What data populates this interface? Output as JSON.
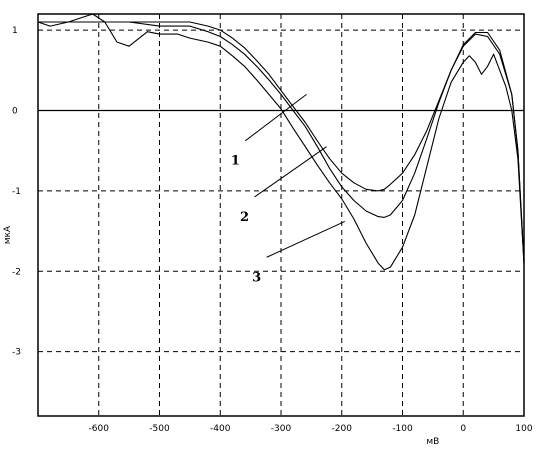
{
  "chart_data": {
    "type": "line",
    "xlabel": "мВ",
    "ylabel": "мкА",
    "xlim": [
      -700,
      100
    ],
    "ylim": [
      -3.8,
      1.2
    ],
    "x_ticks": [
      -600,
      -500,
      -400,
      -300,
      -200,
      -100,
      0,
      100
    ],
    "y_ticks": [
      1,
      0,
      -1,
      -2,
      -3
    ],
    "x_tick_labels": [
      "-600",
      "-500",
      "-400",
      "-300",
      "-200",
      "-100",
      "0",
      "100"
    ],
    "y_tick_labels": [
      "1",
      "0",
      "-1",
      "-2",
      "-3"
    ],
    "grid": true,
    "series": [
      {
        "name": "1",
        "x": [
          -700,
          -650,
          -600,
          -550,
          -500,
          -450,
          -420,
          -400,
          -380,
          -360,
          -340,
          -320,
          -300,
          -280,
          -260,
          -240,
          -220,
          -200,
          -180,
          -160,
          -140,
          -130,
          -120,
          -100,
          -80,
          -60,
          -40,
          -20,
          0,
          20,
          40,
          60,
          80,
          90,
          100
        ],
        "y": [
          1.1,
          1.1,
          1.1,
          1.1,
          1.1,
          1.1,
          1.05,
          1.0,
          0.9,
          0.78,
          0.62,
          0.45,
          0.25,
          0.05,
          -0.15,
          -0.38,
          -0.6,
          -0.78,
          -0.9,
          -0.98,
          -1.0,
          -0.98,
          -0.92,
          -0.78,
          -0.55,
          -0.25,
          0.12,
          0.5,
          0.82,
          0.97,
          0.97,
          0.75,
          0.2,
          -0.5,
          -1.9
        ]
      },
      {
        "name": "2",
        "x": [
          -700,
          -650,
          -600,
          -550,
          -500,
          -450,
          -420,
          -400,
          -380,
          -360,
          -340,
          -320,
          -300,
          -280,
          -260,
          -240,
          -220,
          -200,
          -180,
          -160,
          -140,
          -130,
          -120,
          -100,
          -80,
          -60,
          -40,
          -20,
          0,
          20,
          40,
          60,
          80,
          90,
          100
        ],
        "y": [
          1.1,
          1.1,
          1.1,
          1.1,
          1.05,
          1.05,
          0.98,
          0.92,
          0.82,
          0.7,
          0.55,
          0.38,
          0.2,
          0.0,
          -0.2,
          -0.45,
          -0.72,
          -0.95,
          -1.12,
          -1.25,
          -1.32,
          -1.33,
          -1.3,
          -1.12,
          -0.78,
          -0.35,
          0.1,
          0.5,
          0.8,
          0.95,
          0.92,
          0.7,
          0.2,
          -0.5,
          -1.9
        ]
      },
      {
        "name": "3",
        "x": [
          -700,
          -680,
          -650,
          -630,
          -610,
          -590,
          -570,
          -550,
          -520,
          -500,
          -470,
          -450,
          -420,
          -400,
          -380,
          -360,
          -340,
          -320,
          -300,
          -280,
          -260,
          -240,
          -220,
          -200,
          -180,
          -160,
          -140,
          -130,
          -120,
          -100,
          -80,
          -60,
          -40,
          -20,
          0,
          10,
          20,
          30,
          40,
          50,
          60,
          70,
          80,
          90,
          100
        ],
        "y": [
          1.1,
          1.05,
          1.1,
          1.15,
          1.2,
          1.1,
          0.85,
          0.8,
          0.98,
          0.95,
          0.95,
          0.9,
          0.85,
          0.8,
          0.68,
          0.55,
          0.38,
          0.2,
          0.02,
          -0.22,
          -0.45,
          -0.68,
          -0.9,
          -1.1,
          -1.35,
          -1.65,
          -1.9,
          -1.98,
          -1.95,
          -1.7,
          -1.3,
          -0.7,
          -0.1,
          0.35,
          0.6,
          0.68,
          0.6,
          0.45,
          0.55,
          0.7,
          0.5,
          0.3,
          0.0,
          -0.6,
          -1.9
        ]
      }
    ],
    "annotations": [
      {
        "text": "1",
        "series": "1",
        "x": -258,
        "y": 0.2,
        "label_x": -375,
        "label_y": -0.5
      },
      {
        "text": "2",
        "series": "2",
        "x": -225,
        "y": -0.45,
        "label_x": -360,
        "label_y": -1.2
      },
      {
        "text": "3",
        "series": "3",
        "x": -195,
        "y": -1.38,
        "label_x": -340,
        "label_y": -1.95
      }
    ]
  }
}
